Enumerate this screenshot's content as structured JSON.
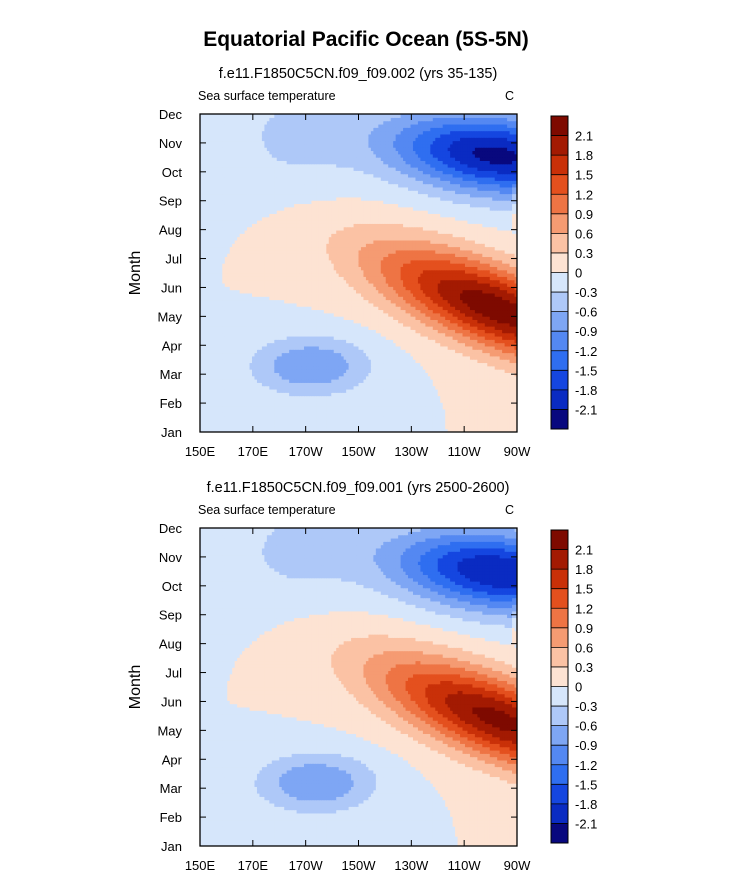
{
  "figure": {
    "title": "Equatorial Pacific Ocean (5S-5N)"
  },
  "chart_data": [
    {
      "type": "heatmap",
      "subtitle": "f.e11.F1850C5CN.f09_f09.002 (yrs 35-135)",
      "left_label": "Sea surface temperature",
      "right_label": "C",
      "xlabel": "",
      "ylabel": "Month",
      "x_ticks": [
        "150E",
        "170E",
        "170W",
        "150W",
        "130W",
        "110W",
        "90W"
      ],
      "y_ticks": [
        "Jan",
        "Feb",
        "Mar",
        "Apr",
        "May",
        "Jun",
        "Jul",
        "Aug",
        "Sep",
        "Oct",
        "Nov",
        "Dec"
      ],
      "xlim_deg_east": [
        150,
        270
      ],
      "colorbar_labels": [
        "2.1",
        "1.8",
        "1.5",
        "1.2",
        "0.9",
        "0.6",
        "0.3",
        "0",
        "-0.3",
        "-0.6",
        "-0.9",
        "-1.2",
        "-1.5",
        "-1.8",
        "-2.1"
      ],
      "warm_peak": {
        "month": 4.3,
        "lon": 262,
        "value": 2.3
      },
      "warm_slope_months_per_deg": -0.033,
      "cold_peak": {
        "month": 9.6,
        "lon": 262,
        "value": -2.2
      },
      "cold_spring_peak": {
        "month": 2.3,
        "lon": 192,
        "value": -0.9
      }
    },
    {
      "type": "heatmap",
      "subtitle": "f.e11.F1850C5CN.f09_f09.001 (yrs 2500-2600)",
      "left_label": "Sea surface temperature",
      "right_label": "C",
      "xlabel": "",
      "ylabel": "Month",
      "x_ticks": [
        "150E",
        "170E",
        "170W",
        "150W",
        "130W",
        "110W",
        "90W"
      ],
      "y_ticks": [
        "Jan",
        "Feb",
        "Mar",
        "Apr",
        "May",
        "Jun",
        "Jul",
        "Aug",
        "Sep",
        "Oct",
        "Nov",
        "Dec"
      ],
      "xlim_deg_east": [
        150,
        270
      ],
      "colorbar_labels": [
        "2.1",
        "1.8",
        "1.5",
        "1.2",
        "0.9",
        "0.6",
        "0.3",
        "0",
        "-0.3",
        "-0.6",
        "-0.9",
        "-1.2",
        "-1.5",
        "-1.8",
        "-2.1"
      ],
      "warm_peak": {
        "month": 4.4,
        "lon": 263,
        "value": 2.2
      },
      "warm_slope_months_per_deg": -0.033,
      "cold_peak": {
        "month": 9.5,
        "lon": 263,
        "value": -2.1
      },
      "cold_spring_peak": {
        "month": 2.2,
        "lon": 194,
        "value": -0.9
      }
    }
  ],
  "colors": {
    "bins": [
      "#08087e",
      "#0a2bc2",
      "#1546e0",
      "#2f6ef0",
      "#5488f2",
      "#7ea6f4",
      "#aec8f8",
      "#d6e6fb",
      "#fde3d3",
      "#fbc2a4",
      "#f59b72",
      "#ee7444",
      "#e4501e",
      "#c93008",
      "#a31a02",
      "#7e0a00"
    ]
  }
}
